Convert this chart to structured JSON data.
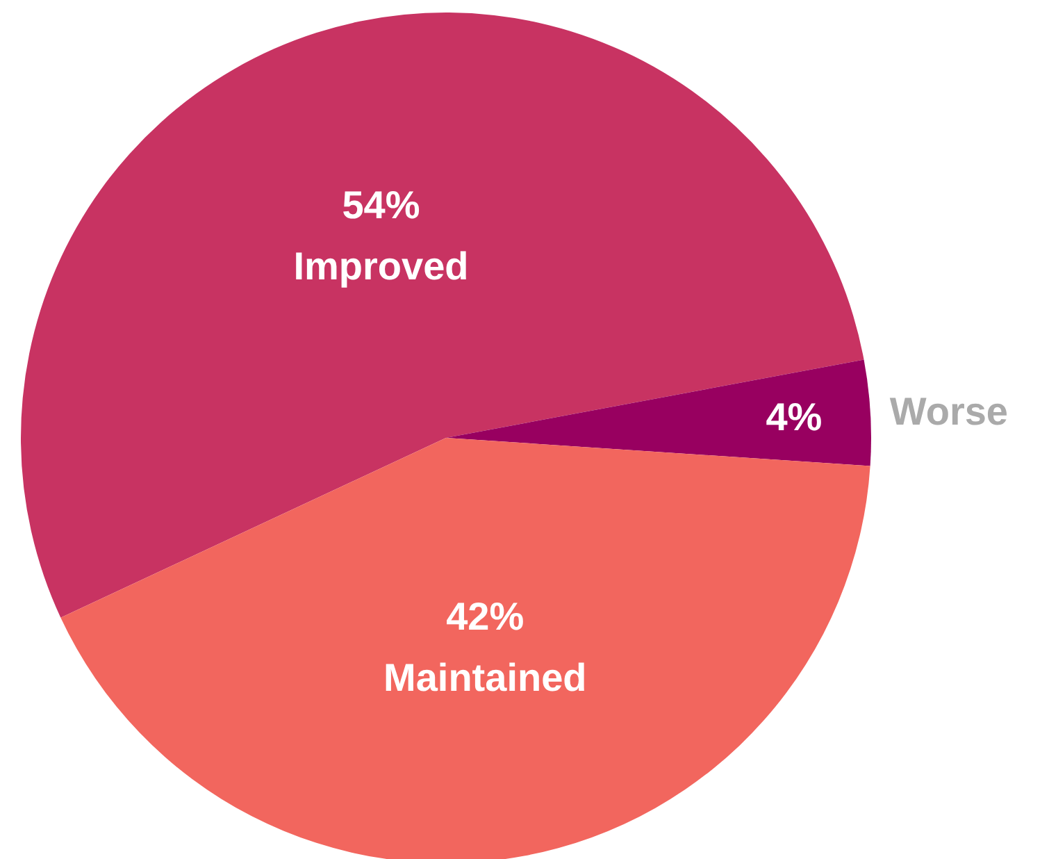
{
  "chart_data": {
    "type": "pie",
    "categories": [
      "Improved",
      "Worse",
      "Maintained"
    ],
    "values": [
      54,
      4,
      42
    ],
    "colors": [
      "#c83362",
      "#980060",
      "#f2665e"
    ],
    "value_labels": [
      "54%",
      "4%",
      "42%"
    ]
  }
}
